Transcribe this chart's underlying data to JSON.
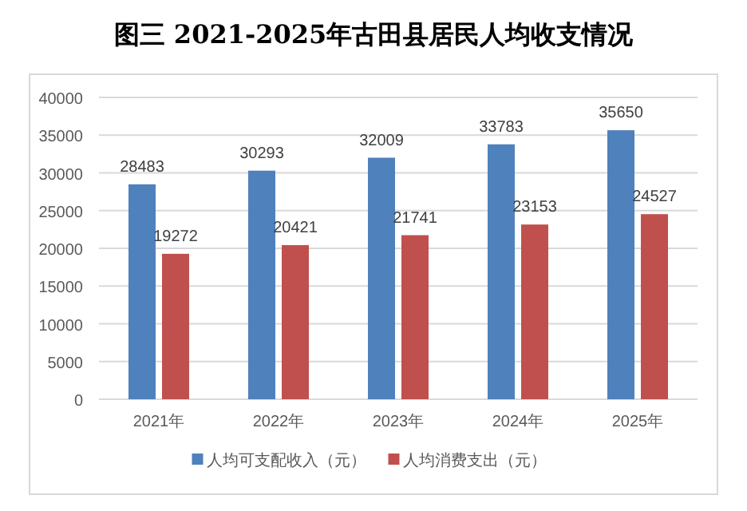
{
  "chart_data": {
    "type": "bar",
    "title": "图三  2021-2025年古田县居民人均收支情况",
    "categories": [
      "2021年",
      "2022年",
      "2023年",
      "2024年",
      "2025年"
    ],
    "series": [
      {
        "name": "人均可支配收入（元）",
        "color": "#4f81bd",
        "values": [
          28483,
          30293,
          32009,
          33783,
          35650
        ]
      },
      {
        "name": "人均消费支出（元）",
        "color": "#c0504d",
        "values": [
          19272,
          20421,
          21741,
          23153,
          24527
        ]
      }
    ],
    "ylim": [
      0,
      40000
    ],
    "yticks": [
      0,
      5000,
      10000,
      15000,
      20000,
      25000,
      30000,
      35000,
      40000
    ],
    "grid": "y",
    "legend": "bottom",
    "data_labels": true
  }
}
